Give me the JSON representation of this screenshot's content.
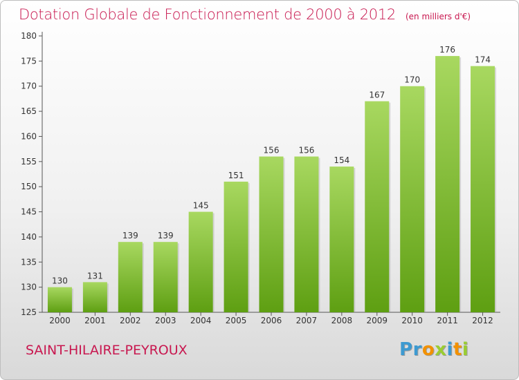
{
  "title": "Dotation Globale de Fonctionnement de 2000 à 2012",
  "unit": "(en milliers d'€)",
  "commune": "SAINT-HILAIRE-PEYROUX",
  "logo": {
    "letters": [
      "P",
      "r",
      "o",
      "x",
      "i",
      "t",
      "i"
    ],
    "colors": [
      "#3d9ad1",
      "#3d9ad1",
      "#f29100",
      "#9acd32",
      "#3d9ad1",
      "#f29100",
      "#9acd32"
    ]
  },
  "colors": {
    "title": "#c8174f",
    "bar_light": "#a8d860",
    "bar_dark": "#5e9f12"
  },
  "chart_data": {
    "type": "bar",
    "categories": [
      "2000",
      "2001",
      "2002",
      "2003",
      "2004",
      "2005",
      "2006",
      "2007",
      "2008",
      "2009",
      "2010",
      "2011",
      "2012"
    ],
    "values": [
      130,
      131,
      139,
      139,
      145,
      151,
      156,
      156,
      154,
      167,
      170,
      176,
      174
    ],
    "yticks": [
      125,
      130,
      135,
      140,
      145,
      150,
      155,
      160,
      165,
      170,
      175,
      180
    ],
    "ylim": [
      125,
      180
    ],
    "grid": false,
    "legend": "none"
  }
}
